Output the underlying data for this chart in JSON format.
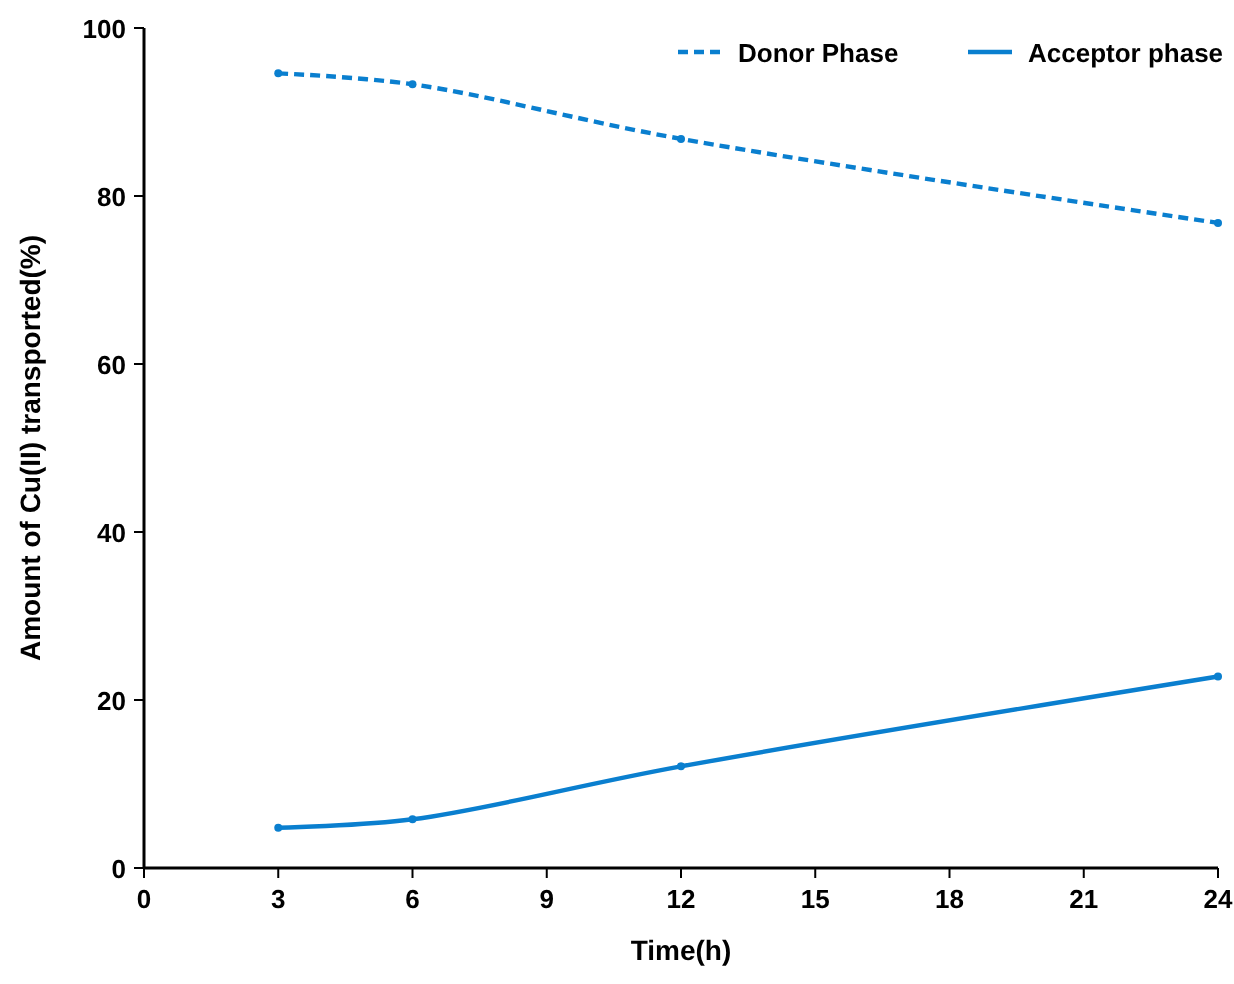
{
  "chart_data": {
    "type": "line",
    "xlabel": "Time(h)",
    "ylabel": "Amount of Cu(II) transported(%)",
    "x": [
      3,
      6,
      12,
      24
    ],
    "series": [
      {
        "name": "Donor Phase",
        "color": "#0a7fcf",
        "values": [
          94.6,
          93.3,
          86.8,
          76.8
        ],
        "line_style": "dashed"
      },
      {
        "name": "Acceptor phase",
        "color": "#0a7fcf",
        "values": [
          4.8,
          5.8,
          12.1,
          22.8
        ],
        "line_style": "solid"
      }
    ],
    "xlim": [
      0,
      24
    ],
    "xticks": [
      0,
      3,
      6,
      9,
      12,
      15,
      18,
      21,
      24
    ],
    "ylim": [
      0,
      100
    ],
    "yticks": [
      0,
      20,
      40,
      60,
      80,
      100
    ],
    "grid": false,
    "legend": "top right",
    "marker": "circle"
  }
}
